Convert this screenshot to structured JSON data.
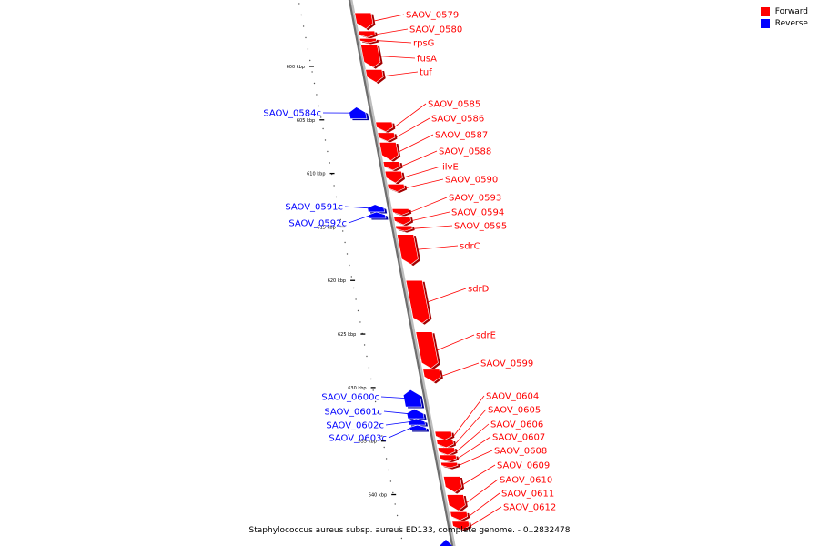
{
  "legend": [
    {
      "label": "Forward",
      "color": "#ff0000"
    },
    {
      "label": "Reverse",
      "color": "#0000ff"
    }
  ],
  "caption": "Staphylococcus aureus subsp. aureus ED133, complete genome. - 0..2832478",
  "ticks": [
    {
      "label": "600 kbp",
      "kbp": 600
    },
    {
      "label": "605 kbp",
      "kbp": 605
    },
    {
      "label": "610 kbp",
      "kbp": 610
    },
    {
      "label": "615 kbp",
      "kbp": 615
    },
    {
      "label": "620 kbp",
      "kbp": 620
    },
    {
      "label": "625 kbp",
      "kbp": 625
    },
    {
      "label": "630 kbp",
      "kbp": 630
    },
    {
      "label": "635 kbp",
      "kbp": 635
    },
    {
      "label": "640 kbp",
      "kbp": 640
    }
  ],
  "genes": [
    {
      "name": "SAOV_0579",
      "strand": "forward",
      "start": 595.0,
      "end": 596.5
    },
    {
      "name": "SAOV_0580",
      "strand": "forward",
      "start": 596.7,
      "end": 597.3
    },
    {
      "name": "rpsG",
      "strand": "forward",
      "start": 597.4,
      "end": 597.8
    },
    {
      "name": "fusA",
      "strand": "forward",
      "start": 598.0,
      "end": 600.1
    },
    {
      "name": "tuf",
      "strand": "forward",
      "start": 600.3,
      "end": 601.5
    },
    {
      "name": "SAOV_0584c",
      "strand": "reverse",
      "start": 603.8,
      "end": 604.9
    },
    {
      "name": "SAOV_0585",
      "strand": "forward",
      "start": 605.2,
      "end": 606.1
    },
    {
      "name": "SAOV_0586",
      "strand": "forward",
      "start": 606.2,
      "end": 607.0
    },
    {
      "name": "SAOV_0587",
      "strand": "forward",
      "start": 607.1,
      "end": 608.8
    },
    {
      "name": "SAOV_0588",
      "strand": "forward",
      "start": 608.9,
      "end": 609.7
    },
    {
      "name": "ilvE",
      "strand": "forward",
      "start": 609.8,
      "end": 610.9
    },
    {
      "name": "SAOV_0590",
      "strand": "forward",
      "start": 611.0,
      "end": 611.7
    },
    {
      "name": "SAOV_0591c",
      "strand": "reverse",
      "start": 612.9,
      "end": 613.6
    },
    {
      "name": "SAOV_0592c",
      "strand": "reverse",
      "start": 613.6,
      "end": 614.2
    },
    {
      "name": "SAOV_0593",
      "strand": "forward",
      "start": 613.3,
      "end": 613.9
    },
    {
      "name": "SAOV_0594",
      "strand": "forward",
      "start": 614.0,
      "end": 614.8
    },
    {
      "name": "SAOV_0595",
      "strand": "forward",
      "start": 614.9,
      "end": 615.4
    },
    {
      "name": "sdrC",
      "strand": "forward",
      "start": 615.7,
      "end": 618.5
    },
    {
      "name": "sdrD",
      "strand": "forward",
      "start": 620.0,
      "end": 624.0
    },
    {
      "name": "sdrE",
      "strand": "forward",
      "start": 624.8,
      "end": 628.2
    },
    {
      "name": "SAOV_0599",
      "strand": "forward",
      "start": 628.3,
      "end": 629.5
    },
    {
      "name": "SAOV_0600c",
      "strand": "reverse",
      "start": 630.2,
      "end": 631.8
    },
    {
      "name": "SAOV_0601c",
      "strand": "reverse",
      "start": 632.0,
      "end": 632.9
    },
    {
      "name": "SAOV_0602c",
      "strand": "reverse",
      "start": 632.9,
      "end": 633.5
    },
    {
      "name": "SAOV_0603c",
      "strand": "reverse",
      "start": 633.5,
      "end": 634.0
    },
    {
      "name": "SAOV_0604",
      "strand": "forward",
      "start": 634.1,
      "end": 634.9
    },
    {
      "name": "SAOV_0605",
      "strand": "forward",
      "start": 634.9,
      "end": 635.6
    },
    {
      "name": "SAOV_0606",
      "strand": "forward",
      "start": 635.6,
      "end": 636.3
    },
    {
      "name": "SAOV_0607",
      "strand": "forward",
      "start": 636.3,
      "end": 636.9
    },
    {
      "name": "SAOV_0608",
      "strand": "forward",
      "start": 637.0,
      "end": 637.5
    },
    {
      "name": "SAOV_0609",
      "strand": "forward",
      "start": 638.3,
      "end": 639.8
    },
    {
      "name": "SAOV_0610",
      "strand": "forward",
      "start": 640.0,
      "end": 641.5
    },
    {
      "name": "SAOV_0611",
      "strand": "forward",
      "start": 641.6,
      "end": 642.4
    },
    {
      "name": "SAOV_0612",
      "strand": "forward",
      "start": 642.5,
      "end": 643.3
    }
  ]
}
